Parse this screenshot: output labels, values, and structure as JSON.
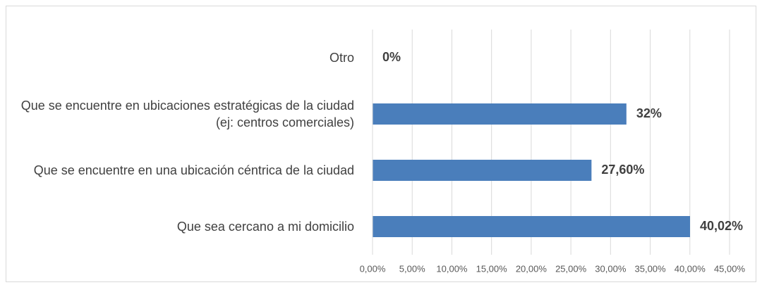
{
  "chart_data": {
    "type": "bar",
    "orientation": "horizontal",
    "categories": [
      "Otro",
      "Que se encuentre en ubicaciones estratégicas de la ciudad (ej: centros comerciales)",
      "Que se encuentre en una ubicación céntrica de la ciudad",
      "Que sea cercano a mi domicilio"
    ],
    "values": [
      0,
      32,
      27.6,
      40.02
    ],
    "value_labels": [
      "0%",
      "32%",
      "27,60%",
      "40,02%"
    ],
    "color": "#4a7ebb",
    "xlim": [
      0,
      45
    ],
    "xticks": [
      {
        "value": 0,
        "label": "0,00%"
      },
      {
        "value": 5,
        "label": "5,00%"
      },
      {
        "value": 10,
        "label": "10,00%"
      },
      {
        "value": 15,
        "label": "15,00%"
      },
      {
        "value": 20,
        "label": "20,00%"
      },
      {
        "value": 25,
        "label": "25,00%"
      },
      {
        "value": 30,
        "label": "30,00%"
      },
      {
        "value": 35,
        "label": "35,00%"
      },
      {
        "value": 40,
        "label": "40,00%"
      },
      {
        "value": 45,
        "label": "45,00%"
      }
    ],
    "grid": true
  }
}
